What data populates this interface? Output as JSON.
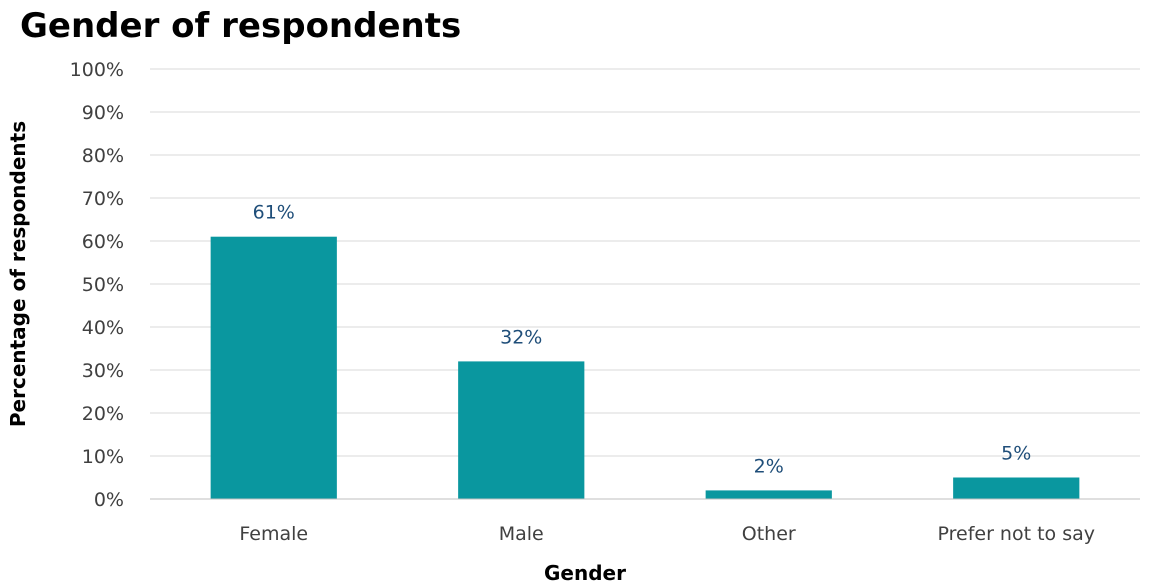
{
  "chart_data": {
    "type": "bar",
    "title": "Gender of respondents",
    "xlabel": "Gender",
    "ylabel": "Percentage of respondents",
    "categories": [
      "Female",
      "Male",
      "Other",
      "Prefer not to say"
    ],
    "values": [
      61,
      32,
      2,
      5
    ],
    "data_labels": [
      "61%",
      "32%",
      "2%",
      "5%"
    ],
    "ylim": [
      0,
      100
    ],
    "yticks": [
      0,
      10,
      20,
      30,
      40,
      50,
      60,
      70,
      80,
      90,
      100
    ],
    "ytick_labels": [
      "0%",
      "10%",
      "20%",
      "30%",
      "40%",
      "50%",
      "60%",
      "70%",
      "80%",
      "90%",
      "100%"
    ],
    "grid": true,
    "legend": "none",
    "colors": {
      "bar": "#0a979f",
      "data_label": "#1f4e79",
      "grid": "#d9d9d9",
      "axis": "#bfbfbf"
    }
  }
}
